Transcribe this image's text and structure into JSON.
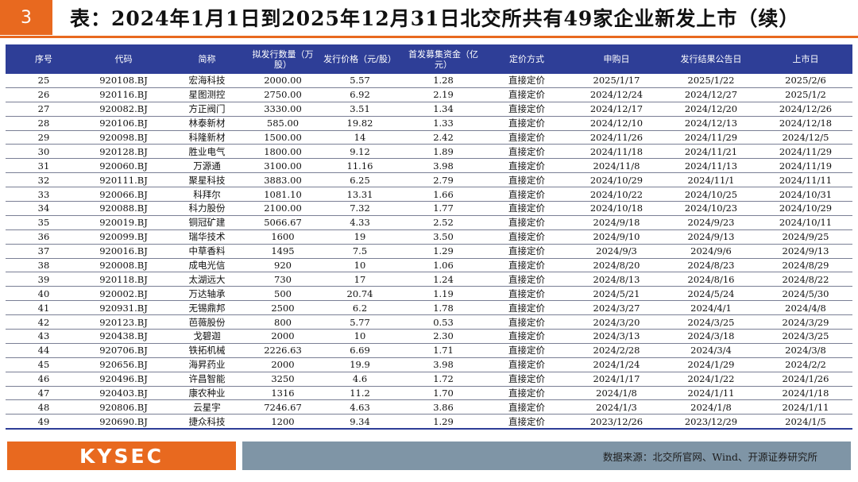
{
  "header": {
    "page_number": "3",
    "title": "表：2024年1月1日到2025年12月31日北交所共有49家企业新发上市（续）"
  },
  "table": {
    "columns": [
      "序号",
      "代码",
      "简称",
      "拟发行数量（万股）",
      "发行价格（元/股）",
      "首发募集资金（亿元）",
      "定价方式",
      "申购日",
      "发行结果公告日",
      "上市日"
    ],
    "rows": [
      [
        "25",
        "920108.BJ",
        "宏海科技",
        "2000.00",
        "5.57",
        "1.28",
        "直接定价",
        "2025/1/17",
        "2025/1/22",
        "2025/2/6"
      ],
      [
        "26",
        "920116.BJ",
        "星图测控",
        "2750.00",
        "6.92",
        "2.19",
        "直接定价",
        "2024/12/24",
        "2024/12/27",
        "2025/1/2"
      ],
      [
        "27",
        "920082.BJ",
        "方正阀门",
        "3330.00",
        "3.51",
        "1.34",
        "直接定价",
        "2024/12/17",
        "2024/12/20",
        "2024/12/26"
      ],
      [
        "28",
        "920106.BJ",
        "林泰新材",
        "585.00",
        "19.82",
        "1.33",
        "直接定价",
        "2024/12/10",
        "2024/12/13",
        "2024/12/18"
      ],
      [
        "29",
        "920098.BJ",
        "科隆新材",
        "1500.00",
        "14",
        "2.42",
        "直接定价",
        "2024/11/26",
        "2024/11/29",
        "2024/12/5"
      ],
      [
        "30",
        "920128.BJ",
        "胜业电气",
        "1800.00",
        "9.12",
        "1.89",
        "直接定价",
        "2024/11/18",
        "2024/11/21",
        "2024/11/29"
      ],
      [
        "31",
        "920060.BJ",
        "万源通",
        "3100.00",
        "11.16",
        "3.98",
        "直接定价",
        "2024/11/8",
        "2024/11/13",
        "2024/11/19"
      ],
      [
        "32",
        "920111.BJ",
        "聚星科技",
        "3883.00",
        "6.25",
        "2.79",
        "直接定价",
        "2024/10/29",
        "2024/11/1",
        "2024/11/11"
      ],
      [
        "33",
        "920066.BJ",
        "科拜尔",
        "1081.10",
        "13.31",
        "1.66",
        "直接定价",
        "2024/10/22",
        "2024/10/25",
        "2024/10/31"
      ],
      [
        "34",
        "920088.BJ",
        "科力股份",
        "2100.00",
        "7.32",
        "1.77",
        "直接定价",
        "2024/10/18",
        "2024/10/23",
        "2024/10/29"
      ],
      [
        "35",
        "920019.BJ",
        "铜冠矿建",
        "5066.67",
        "4.33",
        "2.52",
        "直接定价",
        "2024/9/18",
        "2024/9/23",
        "2024/10/11"
      ],
      [
        "36",
        "920099.BJ",
        "瑞华技术",
        "1600",
        "19",
        "3.50",
        "直接定价",
        "2024/9/10",
        "2024/9/13",
        "2024/9/25"
      ],
      [
        "37",
        "920016.BJ",
        "中草香料",
        "1495",
        "7.5",
        "1.29",
        "直接定价",
        "2024/9/3",
        "2024/9/6",
        "2024/9/13"
      ],
      [
        "38",
        "920008.BJ",
        "成电光信",
        "920",
        "10",
        "1.06",
        "直接定价",
        "2024/8/20",
        "2024/8/23",
        "2024/8/29"
      ],
      [
        "39",
        "920118.BJ",
        "太湖远大",
        "730",
        "17",
        "1.24",
        "直接定价",
        "2024/8/13",
        "2024/8/16",
        "2024/8/22"
      ],
      [
        "40",
        "920002.BJ",
        "万达轴承",
        "500",
        "20.74",
        "1.19",
        "直接定价",
        "2024/5/21",
        "2024/5/24",
        "2024/5/30"
      ],
      [
        "41",
        "920931.BJ",
        "无锡鼎邦",
        "2500",
        "6.2",
        "1.78",
        "直接定价",
        "2024/3/27",
        "2024/4/1",
        "2024/4/8"
      ],
      [
        "42",
        "920123.BJ",
        "芭薇股份",
        "800",
        "5.77",
        "0.53",
        "直接定价",
        "2024/3/20",
        "2024/3/25",
        "2024/3/29"
      ],
      [
        "43",
        "920438.BJ",
        "戈碧迦",
        "2000",
        "10",
        "2.30",
        "直接定价",
        "2024/3/13",
        "2024/3/18",
        "2024/3/25"
      ],
      [
        "44",
        "920706.BJ",
        "铁拓机械",
        "2226.63",
        "6.69",
        "1.71",
        "直接定价",
        "2024/2/28",
        "2024/3/4",
        "2024/3/8"
      ],
      [
        "45",
        "920656.BJ",
        "海昇药业",
        "2000",
        "19.9",
        "3.98",
        "直接定价",
        "2024/1/24",
        "2024/1/29",
        "2024/2/2"
      ],
      [
        "46",
        "920496.BJ",
        "许昌智能",
        "3250",
        "4.6",
        "1.72",
        "直接定价",
        "2024/1/17",
        "2024/1/22",
        "2024/1/26"
      ],
      [
        "47",
        "920403.BJ",
        "康农种业",
        "1316",
        "11.2",
        "1.70",
        "直接定价",
        "2024/1/8",
        "2024/1/11",
        "2024/1/18"
      ],
      [
        "48",
        "920806.BJ",
        "云星宇",
        "7246.67",
        "4.63",
        "3.86",
        "直接定价",
        "2024/1/3",
        "2024/1/8",
        "2024/1/11"
      ],
      [
        "49",
        "920690.BJ",
        "捷众科技",
        "1200",
        "9.34",
        "1.29",
        "直接定价",
        "2023/12/26",
        "2023/12/29",
        "2024/1/5"
      ]
    ]
  },
  "footer": {
    "logo_text": "KYSEC",
    "source": "数据来源：北交所官网、Wind、开源证券研究所"
  },
  "colors": {
    "accent_orange": "#e8691f",
    "header_navy": "#2e3e97",
    "footer_gray_blue": "#7f95a6"
  }
}
